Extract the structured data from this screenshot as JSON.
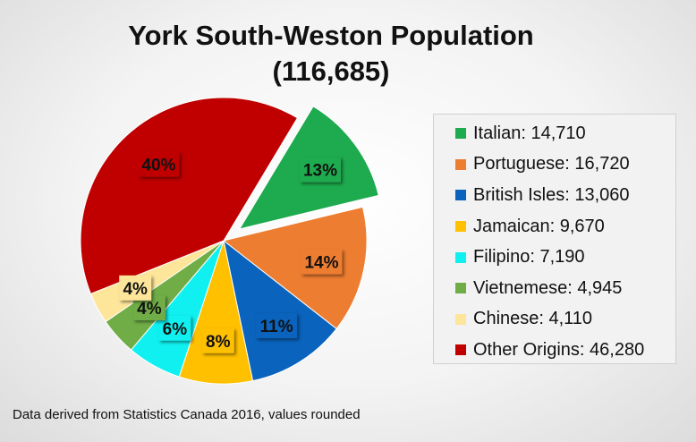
{
  "footnote": "Data derived from Statistics Canada 2016, values rounded",
  "chart_data": {
    "type": "pie",
    "title": "York South-Weston Population",
    "subtitle": "(116,685)",
    "total": 116685,
    "legend_position": "right",
    "slices": [
      {
        "label": "Italian",
        "value": 14710,
        "percent_label": "13%",
        "color": "#1eaa4e",
        "legend": "Italian: 14,710",
        "exploded": true
      },
      {
        "label": "Portuguese",
        "value": 16720,
        "percent_label": "14%",
        "color": "#ed7d31",
        "legend": "Portuguese: 16,720"
      },
      {
        "label": "British Isles",
        "value": 13060,
        "percent_label": "11%",
        "color": "#0a63bc",
        "legend": "British Isles: 13,060"
      },
      {
        "label": "Jamaican",
        "value": 9670,
        "percent_label": "8%",
        "color": "#ffc000",
        "legend": "Jamaican: 9,670"
      },
      {
        "label": "Filipino",
        "value": 7190,
        "percent_label": "6%",
        "color": "#10f0f0",
        "legend": "Filipino: 7,190"
      },
      {
        "label": "Vietnemese",
        "value": 4945,
        "percent_label": "4%",
        "color": "#70ad47",
        "legend": "Vietnemese: 4,945"
      },
      {
        "label": "Chinese",
        "value": 4110,
        "percent_label": "4%",
        "color": "#fde59a",
        "legend": "Chinese: 4,110"
      },
      {
        "label": "Other Origins",
        "value": 46280,
        "percent_label": "40%",
        "color": "#c00000",
        "legend": "Other Origins: 46,280"
      }
    ]
  }
}
